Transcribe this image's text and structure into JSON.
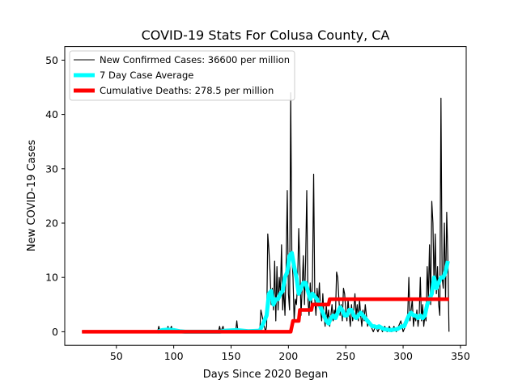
{
  "chart_data": {
    "type": "line",
    "title": "COVID-19 Stats For Colusa County, CA",
    "xlabel": "Days Since 2020 Began",
    "ylabel": "New COVID-19 Cases",
    "xlim": [
      5,
      355
    ],
    "ylim": [
      -2.5,
      52.5
    ],
    "xticks": [
      50,
      100,
      150,
      200,
      250,
      300,
      350
    ],
    "yticks": [
      0,
      10,
      20,
      30,
      40,
      50
    ],
    "grid": false,
    "legend_position": "top-left",
    "series": [
      {
        "name": "New Confirmed Cases: 36600 per million",
        "color": "#000000",
        "points": [
          [
            20,
            0
          ],
          [
            86,
            0
          ],
          [
            87,
            1
          ],
          [
            88,
            0
          ],
          [
            94,
            0
          ],
          [
            95,
            1
          ],
          [
            96,
            0
          ],
          [
            98,
            1
          ],
          [
            99,
            0
          ],
          [
            139,
            0
          ],
          [
            140,
            1
          ],
          [
            141,
            0
          ],
          [
            143,
            1
          ],
          [
            144,
            0
          ],
          [
            154,
            0
          ],
          [
            155,
            2
          ],
          [
            156,
            0
          ],
          [
            175,
            0
          ],
          [
            176,
            4
          ],
          [
            177,
            3
          ],
          [
            178,
            2
          ],
          [
            179,
            1
          ],
          [
            180,
            0
          ],
          [
            181,
            1
          ],
          [
            182,
            18
          ],
          [
            183,
            15
          ],
          [
            184,
            11
          ],
          [
            185,
            5
          ],
          [
            186,
            8
          ],
          [
            187,
            4
          ],
          [
            188,
            13
          ],
          [
            189,
            2
          ],
          [
            190,
            12
          ],
          [
            191,
            4
          ],
          [
            192,
            10
          ],
          [
            193,
            7
          ],
          [
            194,
            16
          ],
          [
            195,
            4
          ],
          [
            196,
            8
          ],
          [
            197,
            3
          ],
          [
            198,
            12
          ],
          [
            199,
            26
          ],
          [
            200,
            7
          ],
          [
            201,
            4
          ],
          [
            202,
            44
          ],
          [
            203,
            14
          ],
          [
            204,
            10
          ],
          [
            205,
            2
          ],
          [
            206,
            6
          ],
          [
            207,
            5
          ],
          [
            208,
            9
          ],
          [
            209,
            19
          ],
          [
            210,
            12
          ],
          [
            211,
            3
          ],
          [
            212,
            8
          ],
          [
            213,
            14
          ],
          [
            214,
            5
          ],
          [
            215,
            13
          ],
          [
            216,
            26
          ],
          [
            217,
            6
          ],
          [
            218,
            3
          ],
          [
            219,
            9
          ],
          [
            220,
            4
          ],
          [
            221,
            10
          ],
          [
            222,
            29
          ],
          [
            223,
            6
          ],
          [
            224,
            3
          ],
          [
            225,
            8
          ],
          [
            226,
            5
          ],
          [
            227,
            9
          ],
          [
            228,
            4
          ],
          [
            229,
            2
          ],
          [
            230,
            7
          ],
          [
            231,
            3
          ],
          [
            232,
            1
          ],
          [
            233,
            5
          ],
          [
            234,
            2
          ],
          [
            235,
            4
          ],
          [
            236,
            1
          ],
          [
            237,
            3
          ],
          [
            238,
            5
          ],
          [
            239,
            2
          ],
          [
            240,
            4
          ],
          [
            241,
            3
          ],
          [
            242,
            11
          ],
          [
            243,
            10
          ],
          [
            244,
            6
          ],
          [
            245,
            3
          ],
          [
            246,
            5
          ],
          [
            247,
            2
          ],
          [
            248,
            8
          ],
          [
            249,
            7
          ],
          [
            250,
            4
          ],
          [
            251,
            2
          ],
          [
            252,
            6
          ],
          [
            253,
            3
          ],
          [
            254,
            1
          ],
          [
            255,
            5
          ],
          [
            256,
            2
          ],
          [
            257,
            4
          ],
          [
            258,
            7
          ],
          [
            259,
            3
          ],
          [
            260,
            5
          ],
          [
            261,
            2
          ],
          [
            262,
            6
          ],
          [
            263,
            3
          ],
          [
            264,
            1
          ],
          [
            265,
            4
          ],
          [
            266,
            2
          ],
          [
            267,
            5
          ],
          [
            268,
            3
          ],
          [
            269,
            1
          ],
          [
            270,
            2
          ],
          [
            272,
            1
          ],
          [
            274,
            0
          ],
          [
            276,
            1
          ],
          [
            278,
            0
          ],
          [
            280,
            1
          ],
          [
            282,
            0
          ],
          [
            284,
            1
          ],
          [
            286,
            0
          ],
          [
            288,
            1
          ],
          [
            290,
            0
          ],
          [
            292,
            1
          ],
          [
            294,
            0
          ],
          [
            296,
            1
          ],
          [
            298,
            2
          ],
          [
            300,
            0
          ],
          [
            302,
            1
          ],
          [
            304,
            3
          ],
          [
            305,
            10
          ],
          [
            306,
            2
          ],
          [
            307,
            4
          ],
          [
            308,
            6
          ],
          [
            309,
            1
          ],
          [
            310,
            3
          ],
          [
            311,
            2
          ],
          [
            312,
            4
          ],
          [
            313,
            1
          ],
          [
            314,
            3
          ],
          [
            315,
            10
          ],
          [
            316,
            2
          ],
          [
            317,
            5
          ],
          [
            318,
            1
          ],
          [
            319,
            3
          ],
          [
            320,
            2
          ],
          [
            321,
            12
          ],
          [
            322,
            6
          ],
          [
            323,
            16
          ],
          [
            324,
            5
          ],
          [
            325,
            24
          ],
          [
            326,
            20
          ],
          [
            327,
            8
          ],
          [
            328,
            18
          ],
          [
            329,
            7
          ],
          [
            330,
            12
          ],
          [
            331,
            5
          ],
          [
            332,
            3
          ],
          [
            333,
            43
          ],
          [
            334,
            10
          ],
          [
            335,
            8
          ],
          [
            336,
            20
          ],
          [
            337,
            6
          ],
          [
            338,
            22
          ],
          [
            339,
            14
          ],
          [
            340,
            0
          ]
        ]
      },
      {
        "name": "7 Day Case Average",
        "color": "#00ffff",
        "points": [
          [
            86,
            0
          ],
          [
            90,
            0.3
          ],
          [
            95,
            0.4
          ],
          [
            100,
            0.3
          ],
          [
            105,
            0.1
          ],
          [
            110,
            0
          ],
          [
            140,
            0
          ],
          [
            145,
            0.2
          ],
          [
            155,
            0.3
          ],
          [
            165,
            0.1
          ],
          [
            175,
            0.2
          ],
          [
            178,
            1.5
          ],
          [
            181,
            3
          ],
          [
            183,
            7
          ],
          [
            185,
            7.5
          ],
          [
            187,
            5
          ],
          [
            189,
            6
          ],
          [
            191,
            6
          ],
          [
            193,
            7
          ],
          [
            195,
            7.5
          ],
          [
            197,
            10
          ],
          [
            199,
            11
          ],
          [
            201,
            14
          ],
          [
            203,
            14.5
          ],
          [
            205,
            12
          ],
          [
            207,
            10
          ],
          [
            209,
            7
          ],
          [
            211,
            8
          ],
          [
            213,
            9
          ],
          [
            215,
            9
          ],
          [
            217,
            7.5
          ],
          [
            219,
            6
          ],
          [
            221,
            7
          ],
          [
            223,
            6.5
          ],
          [
            225,
            6
          ],
          [
            227,
            5
          ],
          [
            229,
            4
          ],
          [
            231,
            3
          ],
          [
            233,
            2
          ],
          [
            235,
            1.5
          ],
          [
            237,
            2.5
          ],
          [
            239,
            3
          ],
          [
            241,
            2.5
          ],
          [
            243,
            3.5
          ],
          [
            245,
            4.5
          ],
          [
            247,
            4
          ],
          [
            249,
            3
          ],
          [
            251,
            3
          ],
          [
            253,
            4
          ],
          [
            255,
            4
          ],
          [
            257,
            3
          ],
          [
            259,
            2.5
          ],
          [
            261,
            3
          ],
          [
            263,
            3.5
          ],
          [
            265,
            3
          ],
          [
            267,
            2.5
          ],
          [
            269,
            2
          ],
          [
            271,
            1.5
          ],
          [
            273,
            1
          ],
          [
            275,
            1
          ],
          [
            277,
            0.8
          ],
          [
            279,
            1
          ],
          [
            283,
            0.5
          ],
          [
            289,
            0.3
          ],
          [
            295,
            0.5
          ],
          [
            299,
            1
          ],
          [
            301,
            1
          ],
          [
            303,
            2
          ],
          [
            305,
            3
          ],
          [
            307,
            3.5
          ],
          [
            309,
            3
          ],
          [
            311,
            3
          ],
          [
            313,
            2.5
          ],
          [
            315,
            3
          ],
          [
            317,
            2.5
          ],
          [
            319,
            3
          ],
          [
            321,
            5
          ],
          [
            323,
            6
          ],
          [
            325,
            7
          ],
          [
            327,
            10
          ],
          [
            329,
            8
          ],
          [
            331,
            9
          ],
          [
            333,
            10
          ],
          [
            335,
            10
          ],
          [
            337,
            11
          ],
          [
            339,
            13
          ]
        ]
      },
      {
        "name": "Cumulative Deaths: 278.5 per million",
        "color": "#ff0000",
        "points": [
          [
            20,
            0
          ],
          [
            202,
            0
          ],
          [
            203,
            1
          ],
          [
            204,
            2
          ],
          [
            209,
            2
          ],
          [
            210,
            4
          ],
          [
            220,
            4
          ],
          [
            221,
            5
          ],
          [
            235,
            5
          ],
          [
            236,
            6
          ],
          [
            340,
            6
          ]
        ]
      }
    ]
  }
}
